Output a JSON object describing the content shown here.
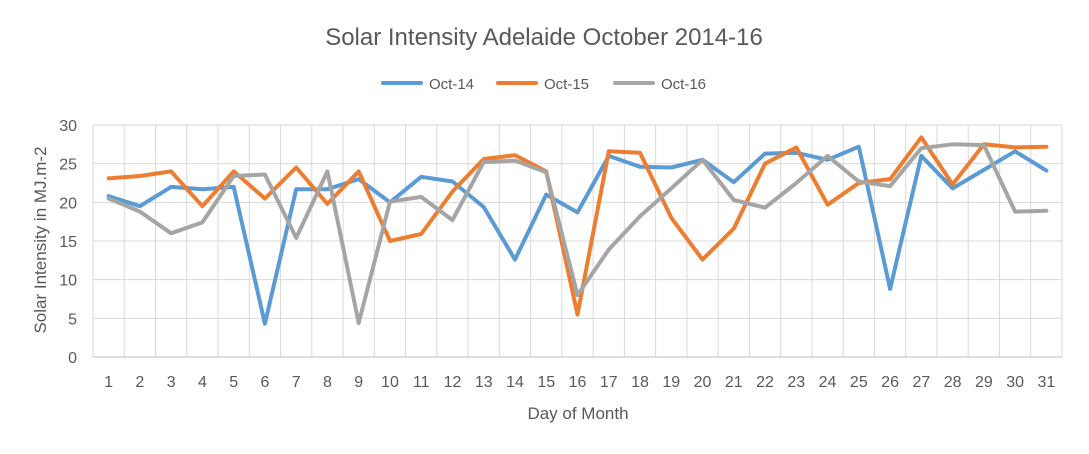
{
  "chart_data": {
    "type": "line",
    "title": "Solar Intensity Adelaide October 2014-16",
    "xlabel": "Day of Month",
    "ylabel": "Solar Intensity in MJ.m-2",
    "ylim": [
      0,
      30
    ],
    "yticks": [
      0,
      5,
      10,
      15,
      20,
      25,
      30
    ],
    "grid": true,
    "legend_position": "top",
    "categories": [
      "1",
      "2",
      "3",
      "4",
      "5",
      "6",
      "7",
      "8",
      "9",
      "10",
      "11",
      "12",
      "13",
      "14",
      "15",
      "16",
      "17",
      "18",
      "19",
      "20",
      "21",
      "22",
      "23",
      "24",
      "25",
      "26",
      "27",
      "28",
      "29",
      "30",
      "31"
    ],
    "series": [
      {
        "name": "Oct-14",
        "color": "#5b9bd5",
        "values": [
          20.8,
          19.5,
          22.0,
          21.7,
          22.0,
          4.3,
          21.7,
          21.7,
          23.0,
          20.0,
          23.3,
          22.7,
          19.4,
          12.6,
          21.0,
          18.7,
          26.0,
          24.6,
          24.5,
          25.5,
          22.6,
          26.3,
          26.4,
          25.5,
          27.2,
          8.8,
          26.0,
          21.8,
          24.2,
          26.6,
          24.1
        ]
      },
      {
        "name": "Oct-15",
        "color": "#ed7d31",
        "values": [
          23.1,
          23.4,
          24.0,
          19.5,
          24.0,
          20.5,
          24.5,
          19.8,
          24.0,
          15.0,
          15.9,
          21.4,
          25.6,
          26.1,
          24.0,
          5.5,
          26.6,
          26.4,
          18.0,
          12.6,
          16.6,
          25.0,
          27.1,
          19.7,
          22.5,
          23.0,
          28.4,
          22.3,
          27.5,
          27.1,
          27.2
        ]
      },
      {
        "name": "Oct-16",
        "color": "#a5a5a5",
        "values": [
          20.5,
          18.8,
          16.0,
          17.4,
          23.4,
          23.6,
          15.4,
          24.0,
          4.4,
          20.1,
          20.7,
          17.7,
          25.2,
          25.4,
          23.9,
          8.0,
          13.9,
          18.2,
          21.8,
          25.5,
          20.3,
          19.3,
          22.5,
          26.0,
          22.7,
          22.1,
          27.0,
          27.5,
          27.4,
          18.8,
          18.9
        ]
      }
    ]
  }
}
